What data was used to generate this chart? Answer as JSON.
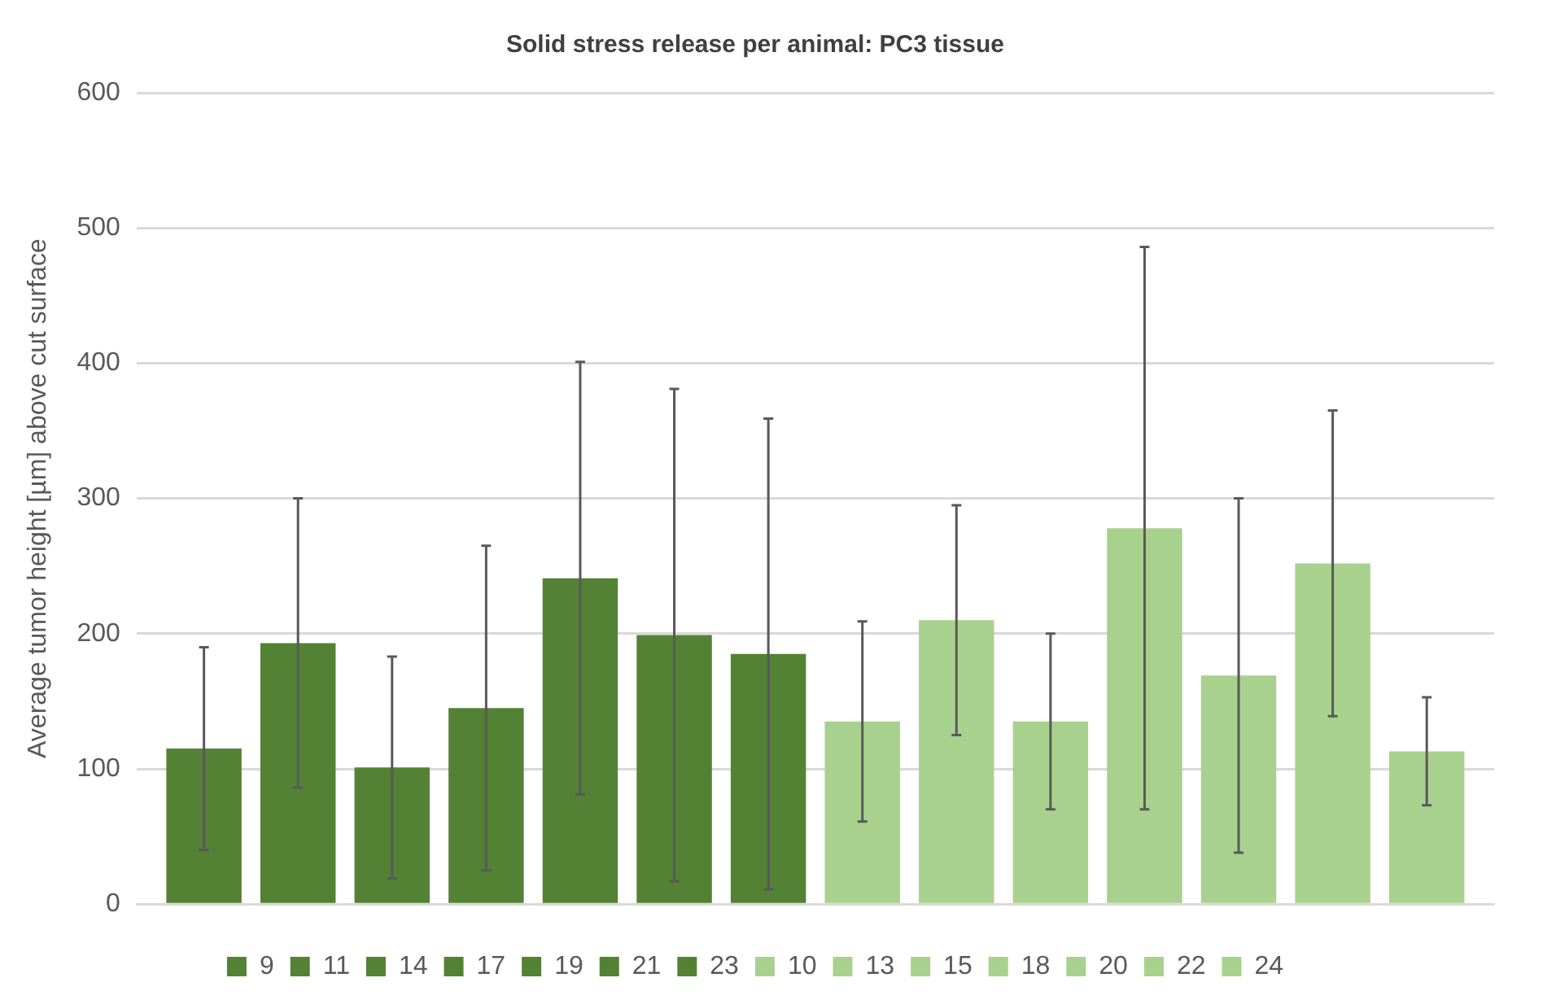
{
  "chart_data": {
    "type": "bar",
    "title": "Solid stress release per animal: PC3 tissue",
    "ylabel": "Average tumor height [µm] above cut surface",
    "categories": [
      null
    ],
    "series": [
      {
        "name": "9",
        "color": "#548235",
        "values": [
          115
        ],
        "errors": [
          75
        ]
      },
      {
        "name": "11",
        "color": "#548235",
        "values": [
          193
        ],
        "errors": [
          107
        ]
      },
      {
        "name": "14",
        "color": "#548235",
        "values": [
          101
        ],
        "errors": [
          82
        ]
      },
      {
        "name": "17",
        "color": "#548235",
        "values": [
          145
        ],
        "errors": [
          120
        ]
      },
      {
        "name": "19",
        "color": "#548235",
        "values": [
          241
        ],
        "errors": [
          160
        ]
      },
      {
        "name": "21",
        "color": "#548235",
        "values": [
          199
        ],
        "errors": [
          182
        ]
      },
      {
        "name": "23",
        "color": "#548235",
        "values": [
          185
        ],
        "errors": [
          174
        ]
      },
      {
        "name": "10",
        "color": "#a9d18e",
        "values": [
          135
        ],
        "errors": [
          74
        ]
      },
      {
        "name": "13",
        "color": "#a9d18e",
        "values": [
          210
        ],
        "errors": [
          85
        ]
      },
      {
        "name": "15",
        "color": "#a9d18e",
        "values": [
          135
        ],
        "errors": [
          65
        ]
      },
      {
        "name": "18",
        "color": "#a9d18e",
        "values": [
          278
        ],
        "errors": [
          208
        ]
      },
      {
        "name": "20",
        "color": "#a9d18e",
        "values": [
          169
        ],
        "errors": [
          131
        ]
      },
      {
        "name": "22",
        "color": "#a9d18e",
        "values": [
          252
        ],
        "errors": [
          113
        ]
      },
      {
        "name": "24",
        "color": "#a9d18e",
        "values": [
          113
        ],
        "errors": [
          40
        ]
      }
    ],
    "ylim": [
      0,
      600
    ],
    "yticks": [
      0,
      100,
      200,
      300,
      400,
      500,
      600
    ],
    "grid": "y",
    "legend": "bottom"
  }
}
